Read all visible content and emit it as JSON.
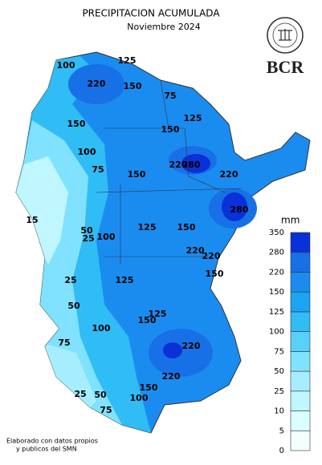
{
  "header": {
    "title": "PRECIPITACION ACUMULADA",
    "subtitle": "Noviembre 2024",
    "logo": "BCR"
  },
  "legend": {
    "unit": "mm",
    "ticks": [
      0,
      5,
      10,
      25,
      50,
      75,
      100,
      125,
      150,
      220,
      280,
      350
    ],
    "colors": [
      "#f2ffff",
      "#daffff",
      "#c0f6ff",
      "#a6eeff",
      "#80e2ff",
      "#58d0f8",
      "#30bcf5",
      "#1aa4f2",
      "#1a8cf0",
      "#1870e6",
      "#0a30d8"
    ]
  },
  "contour_labels": [
    "100",
    "125",
    "220",
    "150",
    "75",
    "125",
    "150",
    "150",
    "100",
    "75",
    "280",
    "220",
    "220",
    "280",
    "150",
    "15",
    "50",
    "25",
    "100",
    "125",
    "150",
    "220",
    "220",
    "125",
    "150",
    "25",
    "50",
    "125",
    "150",
    "100",
    "220",
    "75",
    "220",
    "25",
    "50",
    "150",
    "100",
    "75"
  ],
  "footer": [
    "Elaborado con datos propios",
    "y publicos del SMN"
  ]
}
